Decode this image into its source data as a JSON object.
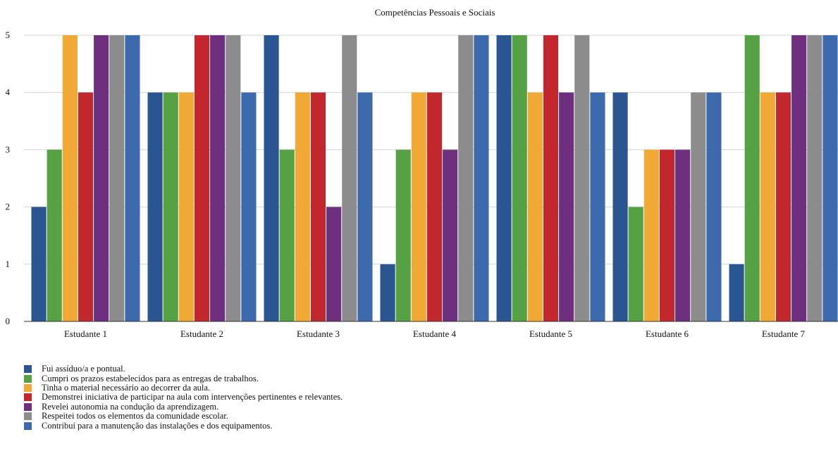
{
  "chart_data": {
    "type": "bar",
    "title": "Competências Pessoais e Sociais",
    "categories": [
      "Estudante 1",
      "Estudante 2",
      "Estudante 3",
      "Estudante 4",
      "Estudante 5",
      "Estudante 6",
      "Estudante 7"
    ],
    "series": [
      {
        "name": "Fui assíduo/a e pontual.",
        "color": "#2b5591",
        "values": [
          2,
          4,
          5,
          1,
          5,
          4,
          1
        ]
      },
      {
        "name": "Cumpri os prazos estabelecidos para as entregas de trabalhos.",
        "color": "#56a144",
        "values": [
          3,
          4,
          3,
          3,
          5,
          2,
          5
        ]
      },
      {
        "name": "Tinha o material necessário ao decorrer da aula.",
        "color": "#f0a935",
        "values": [
          5,
          4,
          4,
          4,
          4,
          3,
          4
        ]
      },
      {
        "name": "Demonstrei iniciativa de participar na aula com intervenções pertinentes e relevantes.",
        "color": "#c1272d",
        "values": [
          4,
          5,
          4,
          4,
          5,
          3,
          4
        ]
      },
      {
        "name": "Revelei autonomia na condução da aprendizagem.",
        "color": "#6e2f7f",
        "values": [
          5,
          5,
          2,
          3,
          4,
          3,
          5
        ]
      },
      {
        "name": "Respeitei todos os elementos da comunidade escolar.",
        "color": "#8c8c8c",
        "values": [
          5,
          5,
          5,
          5,
          5,
          4,
          5
        ]
      },
      {
        "name": "Contribuí para a manutenção das instalações e dos equipamentos.",
        "color": "#3d6aac",
        "values": [
          5,
          4,
          4,
          5,
          4,
          4,
          5
        ]
      }
    ],
    "yticks": [
      0,
      1,
      2,
      3,
      4,
      5
    ],
    "ylim": [
      0,
      5
    ],
    "grid": true,
    "legend_position": "bottom-left"
  }
}
